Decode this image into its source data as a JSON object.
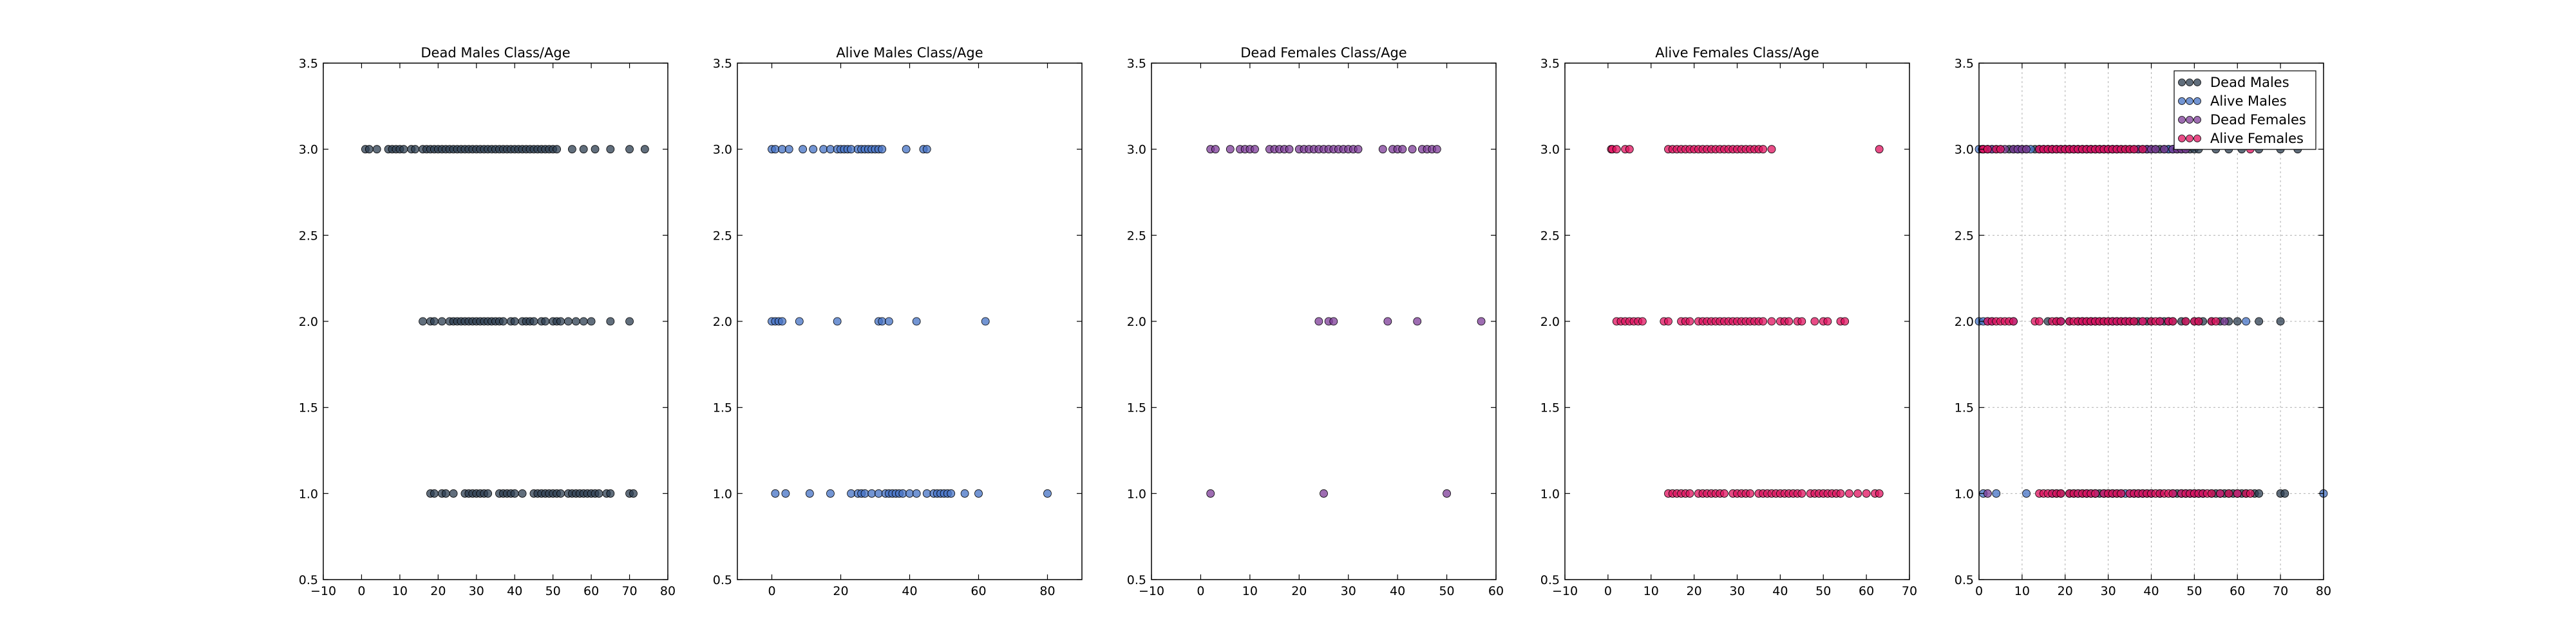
{
  "chart_data": [
    {
      "type": "scatter",
      "title": "Dead Males Class/Age",
      "xlim": [
        -10,
        80
      ],
      "ylim": [
        0.5,
        3.5
      ],
      "xticks": [
        "−10",
        "0",
        "10",
        "20",
        "30",
        "40",
        "50",
        "60",
        "70",
        "80"
      ],
      "yticks": [
        "0.5",
        "1.0",
        "1.5",
        "2.0",
        "2.5",
        "3.0",
        "3.5"
      ],
      "grid": false,
      "series": [
        {
          "color": "#2c3e50",
          "points": {
            "3": [
              1,
              2,
              4,
              7,
              8,
              9,
              10,
              11,
              13,
              14,
              16,
              17,
              18,
              19,
              20,
              21,
              22,
              23,
              24,
              25,
              26,
              27,
              28,
              29,
              30,
              31,
              32,
              33,
              34,
              35,
              36,
              37,
              38,
              39,
              40,
              41,
              42,
              43,
              44,
              45,
              46,
              47,
              48,
              49,
              50,
              51,
              55,
              58,
              61,
              65,
              70,
              74
            ],
            "2": [
              16,
              18,
              19,
              21,
              23,
              24,
              25,
              26,
              27,
              28,
              29,
              30,
              31,
              32,
              33,
              34,
              35,
              36,
              37,
              39,
              40,
              42,
              43,
              44,
              45,
              47,
              48,
              50,
              51,
              52,
              54,
              56,
              58,
              60,
              65,
              70
            ],
            "1": [
              18,
              19,
              21,
              22,
              24,
              27,
              28,
              29,
              30,
              31,
              32,
              33,
              36,
              37,
              38,
              39,
              40,
              42,
              45,
              46,
              47,
              48,
              49,
              50,
              51,
              52,
              54,
              55,
              56,
              57,
              58,
              59,
              60,
              61,
              62,
              64,
              65,
              70,
              71
            ]
          }
        }
      ]
    },
    {
      "type": "scatter",
      "title": "Alive Males Class/Age",
      "xlim": [
        -10,
        90
      ],
      "ylim": [
        0.5,
        3.5
      ],
      "xticks": [
        "0",
        "20",
        "40",
        "60",
        "80"
      ],
      "yticks": [
        "0.5",
        "1.0",
        "1.5",
        "2.0",
        "2.5",
        "3.0",
        "3.5"
      ],
      "grid": false,
      "series": [
        {
          "color": "#4472c4",
          "points": {
            "3": [
              0,
              1,
              3,
              5,
              9,
              12,
              15,
              17,
              19,
              20,
              21,
              22,
              23,
              25,
              26,
              27,
              28,
              29,
              30,
              31,
              32,
              39,
              44,
              45
            ],
            "2": [
              0,
              1,
              2,
              3,
              8,
              19,
              31,
              32,
              34,
              42,
              62
            ],
            "1": [
              1,
              4,
              11,
              17,
              23,
              25,
              26,
              27,
              29,
              31,
              33,
              34,
              35,
              36,
              37,
              38,
              40,
              42,
              45,
              47,
              48,
              49,
              50,
              51,
              52,
              56,
              60,
              80
            ]
          }
        }
      ]
    },
    {
      "type": "scatter",
      "title": "Dead Females Class/Age",
      "xlim": [
        -10,
        60
      ],
      "ylim": [
        0.5,
        3.5
      ],
      "xticks": [
        "−10",
        "0",
        "10",
        "20",
        "30",
        "40",
        "50",
        "60"
      ],
      "yticks": [
        "0.5",
        "1.0",
        "1.5",
        "2.0",
        "2.5",
        "3.0",
        "3.5"
      ],
      "grid": false,
      "series": [
        {
          "color": "#7d3c98",
          "points": {
            "3": [
              2,
              3,
              6,
              8,
              9,
              10,
              11,
              14,
              15,
              16,
              17,
              18,
              20,
              21,
              22,
              23,
              24,
              25,
              26,
              27,
              28,
              29,
              30,
              31,
              32,
              37,
              39,
              40,
              41,
              43,
              45,
              46,
              47,
              48
            ],
            "2": [
              24,
              26,
              27,
              38,
              44,
              57
            ],
            "1": [
              2,
              25,
              50
            ]
          }
        }
      ]
    },
    {
      "type": "scatter",
      "title": "Alive Females Class/Age",
      "xlim": [
        -10,
        70
      ],
      "ylim": [
        0.5,
        3.5
      ],
      "xticks": [
        "−10",
        "0",
        "10",
        "20",
        "30",
        "40",
        "50",
        "60",
        "70"
      ],
      "yticks": [
        "0.5",
        "1.0",
        "1.5",
        "2.0",
        "2.5",
        "3.0",
        "3.5"
      ],
      "grid": false,
      "series": [
        {
          "color": "#e0115f",
          "points": {
            "3": [
              0.75,
              1,
              2,
              4,
              5,
              14,
              15,
              16,
              17,
              18,
              19,
              20,
              21,
              22,
              23,
              24,
              25,
              26,
              27,
              28,
              29,
              30,
              31,
              32,
              33,
              34,
              35,
              36,
              38,
              63
            ],
            "2": [
              2,
              3,
              4,
              5,
              6,
              7,
              8,
              13,
              14,
              17,
              18,
              19,
              21,
              22,
              23,
              24,
              25,
              26,
              27,
              28,
              29,
              30,
              31,
              32,
              33,
              34,
              35,
              36,
              38,
              40,
              41,
              42,
              44,
              45,
              48,
              50,
              51,
              54,
              55
            ],
            "1": [
              14,
              15,
              16,
              17,
              18,
              19,
              21,
              22,
              23,
              24,
              25,
              26,
              27,
              29,
              30,
              31,
              32,
              33,
              35,
              36,
              37,
              38,
              39,
              40,
              41,
              42,
              43,
              44,
              45,
              47,
              48,
              49,
              50,
              51,
              52,
              53,
              54,
              56,
              58,
              60,
              62,
              63
            ]
          }
        }
      ]
    },
    {
      "type": "scatter",
      "title": "",
      "xlim": [
        0,
        80
      ],
      "ylim": [
        0.5,
        3.5
      ],
      "xticks": [
        "0",
        "10",
        "20",
        "30",
        "40",
        "50",
        "60",
        "70",
        "80"
      ],
      "yticks": [
        "0.5",
        "1.0",
        "1.5",
        "2.0",
        "2.5",
        "3.0",
        "3.5"
      ],
      "grid": true,
      "legend": "top-right",
      "series": [
        {
          "name": "Dead Males",
          "ref": 0,
          "color": "#2c3e50"
        },
        {
          "name": "Alive Males",
          "ref": 1,
          "color": "#4472c4"
        },
        {
          "name": "Dead Females",
          "ref": 2,
          "color": "#7d3c98"
        },
        {
          "name": "Alive Females",
          "ref": 3,
          "color": "#e0115f"
        }
      ]
    }
  ]
}
